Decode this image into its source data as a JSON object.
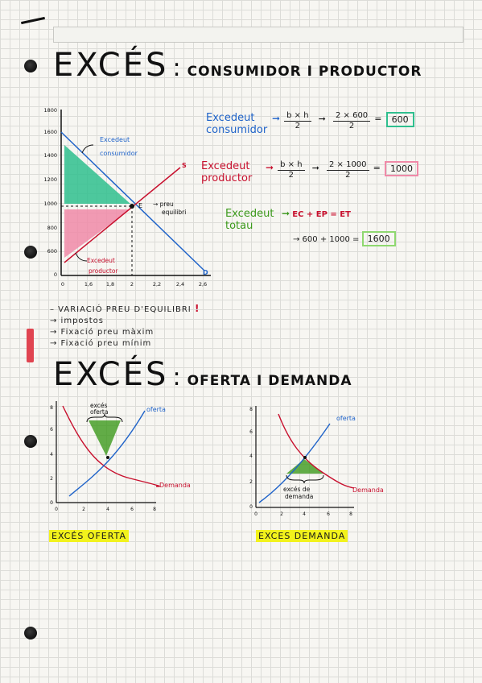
{
  "title1": {
    "main": "EXCÉS",
    "colon": ":",
    "sub": "CONSUMIDOR I PRODUCTOR"
  },
  "chart1": {
    "y_ticks": [
      "1800",
      "1600",
      "1400",
      "1200",
      "1000",
      "800",
      "600",
      "0"
    ],
    "x_ticks": [
      "0",
      "1,6",
      "1,8",
      "2",
      "2,2",
      "2,4",
      "2,6"
    ],
    "label_consumer": [
      "Excedeut",
      "consumidor"
    ],
    "label_producer": [
      "Excedeut",
      "productor"
    ],
    "label_s": "S",
    "label_d": "D",
    "label_e": "E",
    "label_price": [
      "→ preu",
      "equilibri"
    ]
  },
  "formulas": {
    "consumer": {
      "label": [
        "Excedeut",
        "consumidor"
      ],
      "f1_num": "b × h",
      "f1_den": "2",
      "f2_num": "2 × 600",
      "f2_den": "2",
      "eq": "=",
      "result": "600"
    },
    "producer": {
      "label": [
        "Excedeut",
        "productor"
      ],
      "f1_num": "b × h",
      "f1_den": "2",
      "f2_num": "2 × 1000",
      "f2_den": "2",
      "eq": "=",
      "result": "1000"
    },
    "total": {
      "label": [
        "Excedeut",
        "totau"
      ],
      "formula": "EC + EP = ET",
      "calc": "→ 600 + 1000 =",
      "result": "1600"
    }
  },
  "list": [
    "– VARIACIÓ PREU D'EQUILIBRI",
    "→ impostos",
    "→ Fixació preu màxim",
    "→ Fixació preu mínim"
  ],
  "list_mark": "!",
  "title2": {
    "main": "EXCÉS",
    "colon": ":",
    "sub": "OFERTA I DEMANDA"
  },
  "chart2": {
    "y_ticks": [
      "8",
      "6",
      "4",
      "2",
      "0"
    ],
    "x_ticks": [
      "0",
      "2",
      "4",
      "6",
      "8"
    ],
    "label_offer": "oferta",
    "label_demand": "Demanda",
    "label_excess": [
      "excés",
      "oferta"
    ],
    "caption": "EXCÉS OFERTA"
  },
  "chart3": {
    "y_ticks": [
      "8",
      "6",
      "4",
      "2",
      "0"
    ],
    "x_ticks": [
      "0",
      "2",
      "4",
      "6",
      "8"
    ],
    "label_offer": "oferta",
    "label_demand": "Demanda",
    "label_excess": [
      "excés de",
      "demanda"
    ],
    "caption": "EXCES DEMANDA"
  },
  "colors": {
    "blue": "#1f63c9",
    "red": "#c8102e",
    "green": "#3c9a1c",
    "teal": "#2fbf8e",
    "pink": "#f08aa8",
    "highlight": "#f2f21c"
  }
}
